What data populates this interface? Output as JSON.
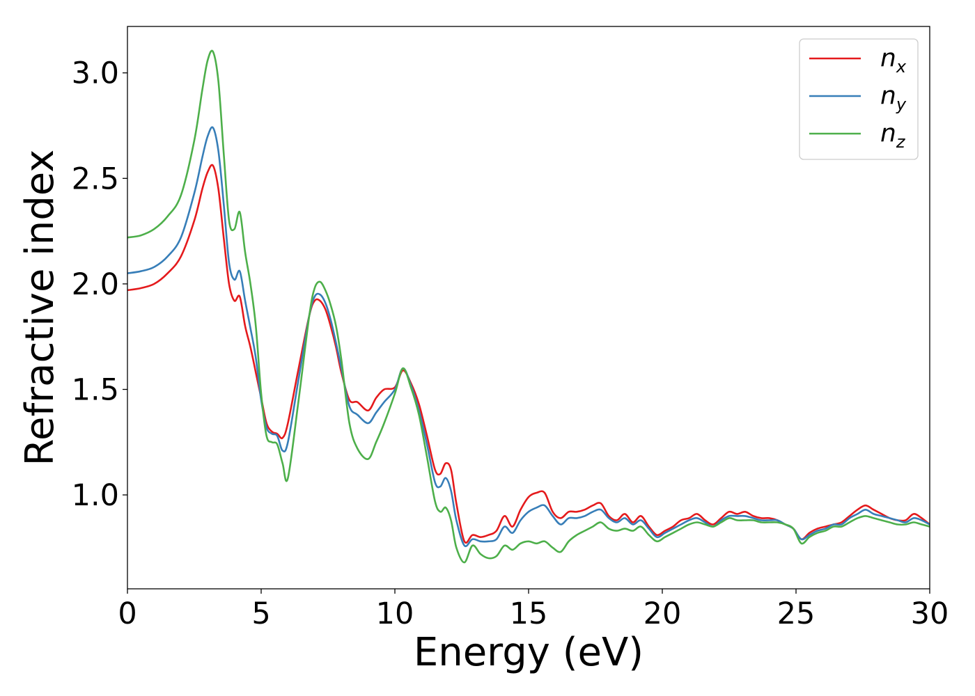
{
  "chart_data": {
    "type": "line",
    "title": "",
    "xlabel": "Energy (eV)",
    "ylabel": "Refractive index",
    "xlim": [
      0,
      30
    ],
    "ylim": [
      0.555,
      3.22
    ],
    "xticks": [
      0,
      5,
      10,
      15,
      20,
      25,
      30
    ],
    "xtick_labels": [
      "0",
      "5",
      "10",
      "15",
      "20",
      "25",
      "30"
    ],
    "yticks": [
      1.0,
      1.5,
      2.0,
      2.5,
      3.0
    ],
    "ytick_labels": [
      "1.0",
      "1.5",
      "2.0",
      "2.5",
      "3.0"
    ],
    "grid": false,
    "legend_position": "top-right",
    "x": [
      0,
      0.5,
      1.0,
      1.5,
      2.0,
      2.5,
      2.8,
      3.0,
      3.2,
      3.4,
      3.6,
      3.8,
      4.0,
      4.2,
      4.4,
      4.6,
      4.8,
      5.0,
      5.2,
      5.4,
      5.6,
      5.8,
      6.0,
      6.4,
      6.8,
      7.0,
      7.2,
      7.4,
      7.6,
      7.8,
      8.0,
      8.3,
      8.6,
      9.0,
      9.3,
      9.6,
      10.0,
      10.3,
      10.6,
      10.9,
      11.2,
      11.5,
      11.7,
      11.9,
      12.1,
      12.3,
      12.6,
      12.9,
      13.2,
      13.5,
      13.8,
      14.1,
      14.4,
      14.7,
      15.0,
      15.3,
      15.6,
      15.9,
      16.2,
      16.5,
      16.8,
      17.1,
      17.4,
      17.7,
      18.0,
      18.3,
      18.6,
      18.9,
      19.2,
      19.5,
      19.8,
      20.1,
      20.4,
      20.7,
      21.0,
      21.3,
      21.6,
      21.9,
      22.2,
      22.5,
      22.8,
      23.1,
      23.4,
      23.7,
      24.0,
      24.3,
      24.6,
      24.9,
      25.2,
      25.5,
      25.8,
      26.1,
      26.4,
      26.7,
      27.0,
      27.3,
      27.6,
      27.9,
      28.2,
      28.5,
      28.8,
      29.1,
      29.4,
      29.7,
      30.0
    ],
    "series": [
      {
        "name": "n_x",
        "color": "#e41a1c",
        "values": [
          1.97,
          1.98,
          2.0,
          2.05,
          2.13,
          2.3,
          2.45,
          2.53,
          2.56,
          2.45,
          2.22,
          2.0,
          1.92,
          1.94,
          1.8,
          1.7,
          1.58,
          1.46,
          1.34,
          1.3,
          1.29,
          1.27,
          1.34,
          1.6,
          1.85,
          1.92,
          1.92,
          1.88,
          1.8,
          1.7,
          1.58,
          1.45,
          1.44,
          1.4,
          1.46,
          1.5,
          1.51,
          1.59,
          1.53,
          1.43,
          1.28,
          1.12,
          1.1,
          1.15,
          1.12,
          0.96,
          0.78,
          0.81,
          0.8,
          0.81,
          0.83,
          0.9,
          0.85,
          0.93,
          0.99,
          1.01,
          1.01,
          0.92,
          0.89,
          0.92,
          0.92,
          0.93,
          0.95,
          0.96,
          0.9,
          0.88,
          0.91,
          0.87,
          0.9,
          0.85,
          0.81,
          0.83,
          0.85,
          0.88,
          0.89,
          0.91,
          0.88,
          0.86,
          0.89,
          0.92,
          0.91,
          0.92,
          0.9,
          0.89,
          0.89,
          0.88,
          0.86,
          0.84,
          0.79,
          0.82,
          0.84,
          0.85,
          0.86,
          0.87,
          0.9,
          0.93,
          0.95,
          0.93,
          0.91,
          0.89,
          0.88,
          0.88,
          0.91,
          0.89,
          0.86
        ]
      },
      {
        "name": "n_y",
        "color": "#377eb8",
        "values": [
          2.05,
          2.06,
          2.08,
          2.13,
          2.22,
          2.43,
          2.6,
          2.7,
          2.74,
          2.63,
          2.38,
          2.1,
          2.02,
          2.06,
          1.92,
          1.79,
          1.65,
          1.45,
          1.32,
          1.29,
          1.28,
          1.21,
          1.25,
          1.55,
          1.85,
          1.94,
          1.95,
          1.91,
          1.83,
          1.72,
          1.6,
          1.42,
          1.38,
          1.34,
          1.39,
          1.44,
          1.5,
          1.6,
          1.52,
          1.4,
          1.24,
          1.06,
          1.04,
          1.08,
          1.02,
          0.88,
          0.76,
          0.79,
          0.78,
          0.78,
          0.79,
          0.85,
          0.82,
          0.88,
          0.92,
          0.94,
          0.95,
          0.9,
          0.86,
          0.89,
          0.89,
          0.9,
          0.92,
          0.93,
          0.89,
          0.87,
          0.89,
          0.86,
          0.88,
          0.84,
          0.8,
          0.82,
          0.84,
          0.86,
          0.88,
          0.89,
          0.87,
          0.85,
          0.88,
          0.9,
          0.9,
          0.9,
          0.89,
          0.88,
          0.88,
          0.88,
          0.86,
          0.84,
          0.79,
          0.81,
          0.83,
          0.84,
          0.86,
          0.86,
          0.89,
          0.91,
          0.93,
          0.91,
          0.9,
          0.89,
          0.88,
          0.87,
          0.89,
          0.88,
          0.86
        ]
      },
      {
        "name": "n_z",
        "color": "#4daf4a",
        "values": [
          2.22,
          2.23,
          2.26,
          2.32,
          2.42,
          2.68,
          2.92,
          3.06,
          3.1,
          2.96,
          2.62,
          2.3,
          2.26,
          2.34,
          2.15,
          2.0,
          1.8,
          1.48,
          1.28,
          1.25,
          1.24,
          1.15,
          1.08,
          1.45,
          1.85,
          1.98,
          2.01,
          1.97,
          1.9,
          1.8,
          1.64,
          1.34,
          1.22,
          1.17,
          1.25,
          1.34,
          1.48,
          1.6,
          1.51,
          1.38,
          1.18,
          0.97,
          0.92,
          0.94,
          0.88,
          0.75,
          0.68,
          0.76,
          0.72,
          0.7,
          0.71,
          0.76,
          0.74,
          0.77,
          0.78,
          0.77,
          0.78,
          0.75,
          0.73,
          0.78,
          0.81,
          0.83,
          0.85,
          0.87,
          0.84,
          0.83,
          0.84,
          0.83,
          0.85,
          0.81,
          0.78,
          0.8,
          0.82,
          0.84,
          0.86,
          0.87,
          0.86,
          0.85,
          0.87,
          0.89,
          0.88,
          0.88,
          0.88,
          0.87,
          0.87,
          0.87,
          0.86,
          0.84,
          0.77,
          0.8,
          0.82,
          0.83,
          0.85,
          0.85,
          0.87,
          0.89,
          0.9,
          0.89,
          0.88,
          0.87,
          0.86,
          0.86,
          0.87,
          0.86,
          0.85
        ]
      }
    ]
  },
  "legend": [
    {
      "base": "n",
      "sub": "x",
      "color": "#e41a1c"
    },
    {
      "base": "n",
      "sub": "y",
      "color": "#377eb8"
    },
    {
      "base": "n",
      "sub": "z",
      "color": "#4daf4a"
    }
  ]
}
